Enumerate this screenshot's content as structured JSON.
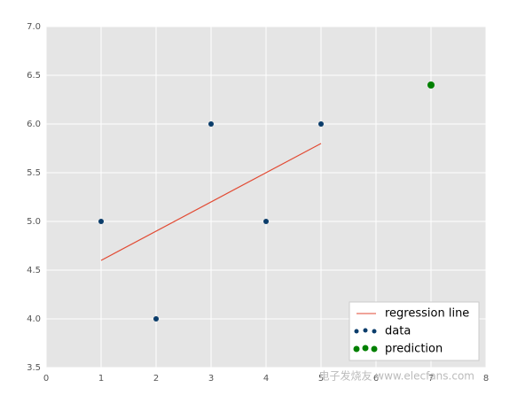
{
  "chart_data": {
    "type": "scatter",
    "series": [
      {
        "name": "regression line",
        "kind": "line",
        "color": "#e24a33",
        "x": [
          1,
          5
        ],
        "values": [
          4.6,
          5.8
        ]
      },
      {
        "name": "data",
        "kind": "scatter",
        "color": "#0b3d6b",
        "x": [
          1,
          2,
          3,
          4,
          5
        ],
        "values": [
          5,
          4,
          6,
          5,
          6
        ]
      },
      {
        "name": "prediction",
        "kind": "scatter",
        "color": "#008000",
        "x": [
          7
        ],
        "values": [
          6.4
        ]
      }
    ],
    "xlim": [
      0,
      8
    ],
    "xticks": [
      0,
      1,
      2,
      3,
      4,
      5,
      6,
      7,
      8
    ],
    "ylim": [
      3.5,
      7.0
    ],
    "yticks": [
      3.5,
      {
        "value": 4.0,
        "label": "4.0"
      },
      4.5,
      {
        "value": 5.0,
        "label": "5.0"
      },
      5.5,
      {
        "value": 6.0,
        "label": "6.0"
      },
      6.5,
      {
        "value": 7.0,
        "label": "7.0"
      }
    ],
    "grid": true,
    "legend": "lower right",
    "watermark": "电子发烧友 www.elecfans.com"
  }
}
